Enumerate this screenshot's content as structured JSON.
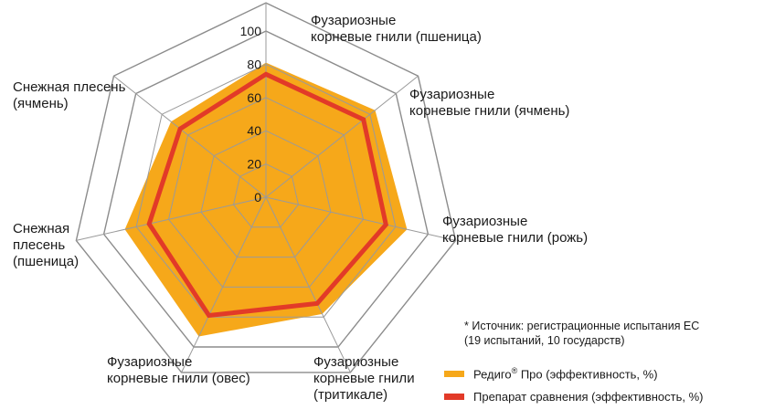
{
  "chart_data": {
    "type": "radar",
    "title": "",
    "rlim": [
      0,
      100
    ],
    "r_ticks": [
      "0",
      "20",
      "40",
      "60",
      "80",
      "100"
    ],
    "grid": true,
    "categories": [
      "Фузариозные\nкорневые гнили (пшеница)",
      "Фузариозные\nкорневые гнили (ячмень)",
      "Фузариозные\nкорневые гнили (рожь)",
      "Фузариозные\nкорневые гнили\n(тритикале)",
      "Фузариозные\nкорневые гнили (овес)",
      "Снежная\nплесень\n(пшеница)",
      "Снежная плесень\n(ячмень)"
    ],
    "series": [
      {
        "name": "Редиго® Про (эффективность, %)",
        "color": "#f6a81a",
        "values": [
          81,
          84,
          87,
          78,
          93,
          87,
          73
        ]
      },
      {
        "name": "Препарат сравнения (эффективность, %)",
        "color": "#e23a28",
        "values": [
          74,
          75,
          74,
          71,
          79,
          72,
          66
        ]
      }
    ],
    "legend_position": "bottom-right",
    "note": "* Источник: регистрационные испытания ЕС\n(19 испытаний, 10 государств)"
  },
  "legend": {
    "item1_prefix": "Редиго",
    "item1_reg": "®",
    "item1_suffix": " Про (эффективность, %)",
    "item2": "Препарат сравнения (эффективность, %)"
  }
}
